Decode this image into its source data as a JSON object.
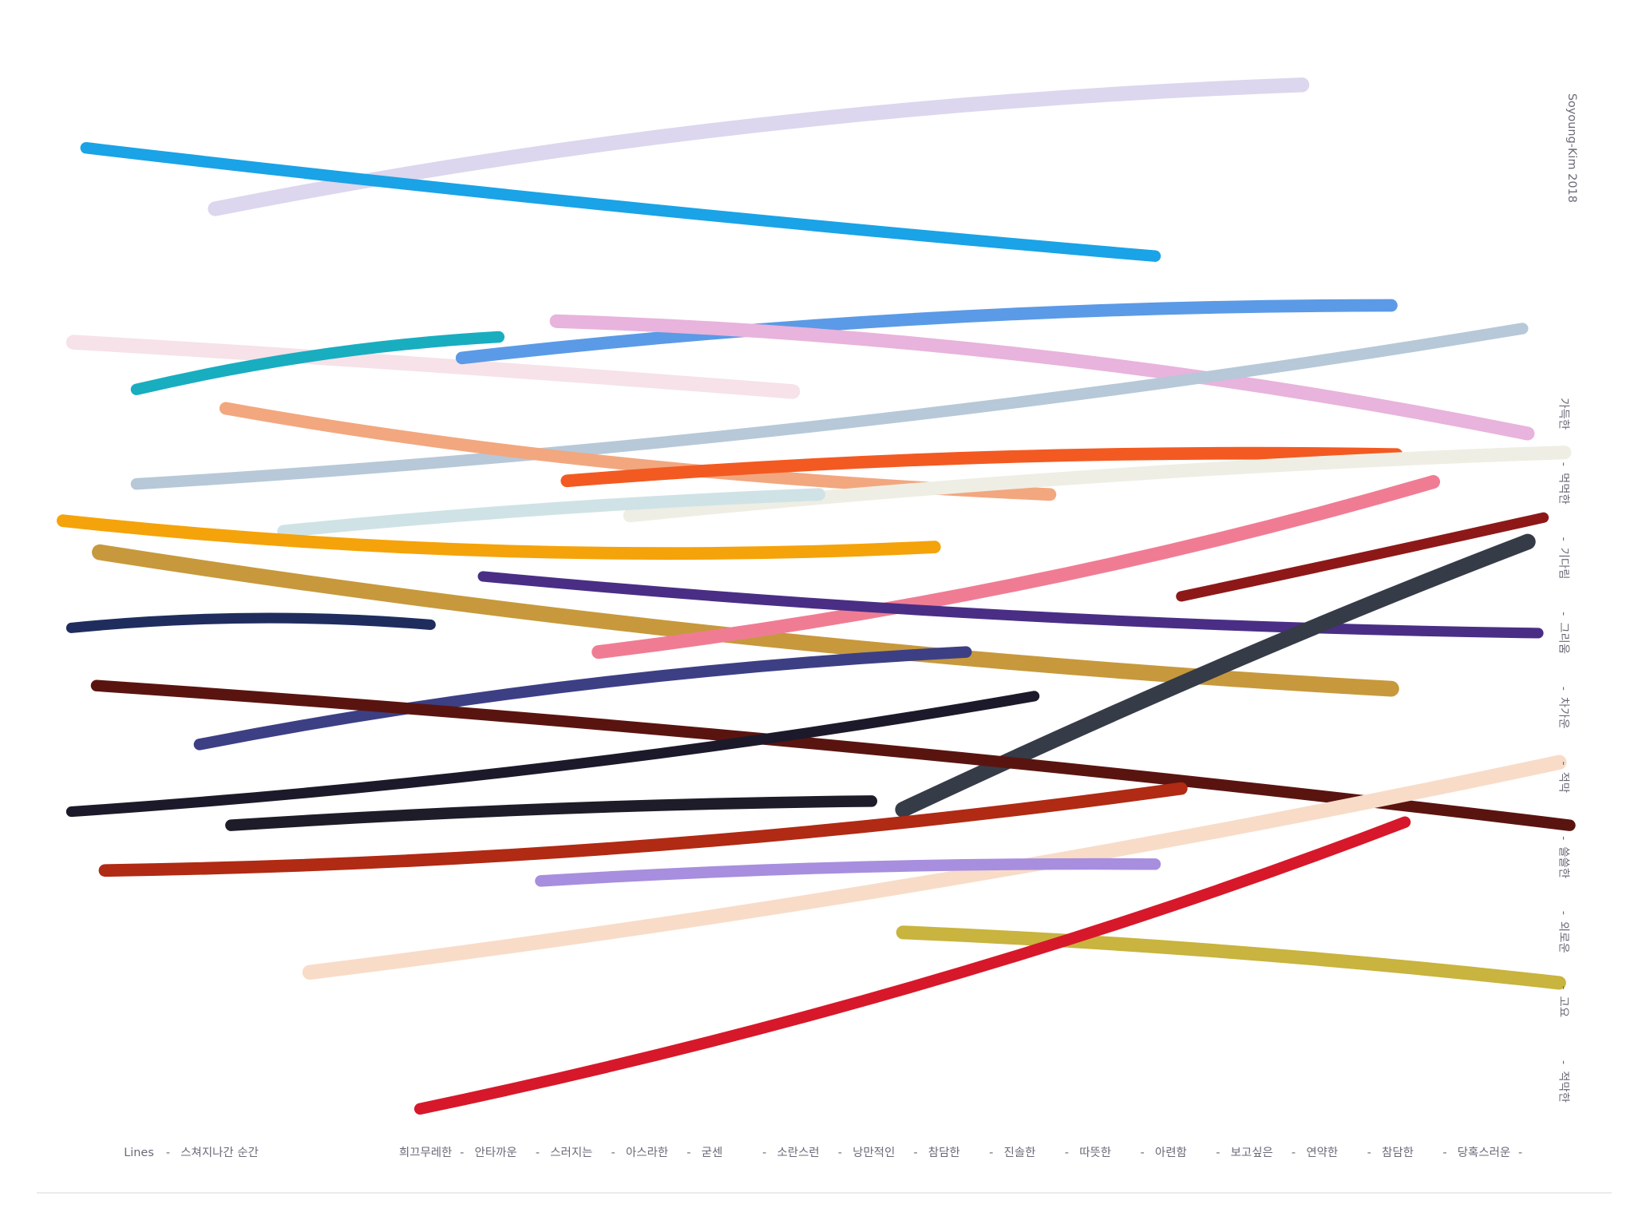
{
  "caption": {
    "title": "Lines",
    "subtitle": "스쳐지나간 순간"
  },
  "separator": "-",
  "words": [
    "희끄무레한",
    "안타까운",
    "스러지는",
    "아스라한",
    "굳센",
    "소란스런",
    "낭만적인",
    "참담한",
    "진솔한",
    "따뜻한",
    "아련함",
    "보고싶은",
    "연약한",
    "참담한",
    "당혹스러운"
  ],
  "signature": "Soyoung-Kim 2018",
  "side_words": [
    "가득한",
    "먹먹한",
    "기다림",
    "그리움",
    "차가운",
    "적막",
    "쓸쓸한",
    "외로운",
    "고요",
    "적막한"
  ]
}
